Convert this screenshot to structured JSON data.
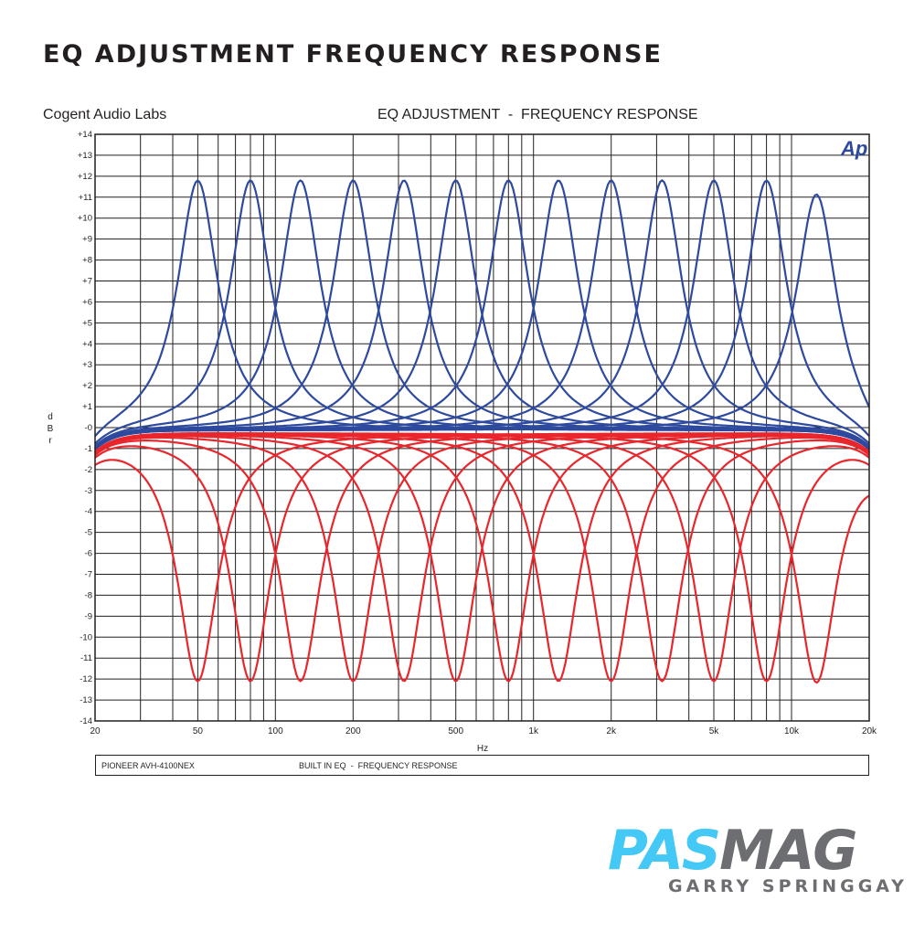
{
  "page": {
    "title": "EQ ADJUSTMENT FREQUENCY RESPONSE",
    "brand": "Cogent Audio Labs",
    "plot_title": "EQ ADJUSTMENT  -  FREQUENCY RESPONSE",
    "footer_left": "PIONEER AVH-4100NEX",
    "footer_right": "BUILT IN EQ  -  FREQUENCY RESPONSE",
    "logo_pas": "PAS",
    "logo_mag": "MAG",
    "credit": "GARRY SPRINGGAY",
    "ap_logo": "Ap"
  },
  "colors": {
    "boost": "#2e4a9e",
    "cut": "#e8262c",
    "grid": "#231f20",
    "ap_logo": "#2e4a9e",
    "logo_pas": "#44c8f5",
    "logo_mag": "#6d6e71"
  },
  "chart_data": {
    "type": "line",
    "title": "EQ ADJUSTMENT  -  FREQUENCY RESPONSE",
    "xlabel": "Hz",
    "ylabel": "dBr",
    "x_scale": "log",
    "xlim": [
      20,
      20000
    ],
    "ylim": [
      -14,
      14
    ],
    "grid": true,
    "x_ticks": [
      {
        "value": 20,
        "label": "20"
      },
      {
        "value": 50,
        "label": "50"
      },
      {
        "value": 100,
        "label": "100"
      },
      {
        "value": 200,
        "label": "200"
      },
      {
        "value": 500,
        "label": "500"
      },
      {
        "value": 1000,
        "label": "1k"
      },
      {
        "value": 2000,
        "label": "2k"
      },
      {
        "value": 5000,
        "label": "5k"
      },
      {
        "value": 10000,
        "label": "10k"
      },
      {
        "value": 20000,
        "label": "20k"
      }
    ],
    "y_ticks": [
      {
        "value": 14,
        "label": "+14"
      },
      {
        "value": 13,
        "label": "+13"
      },
      {
        "value": 12,
        "label": "+12"
      },
      {
        "value": 11,
        "label": "+11"
      },
      {
        "value": 10,
        "label": "+10"
      },
      {
        "value": 9,
        "label": "+9"
      },
      {
        "value": 8,
        "label": "+8"
      },
      {
        "value": 7,
        "label": "+7"
      },
      {
        "value": 6,
        "label": "+6"
      },
      {
        "value": 5,
        "label": "+5"
      },
      {
        "value": 4,
        "label": "+4"
      },
      {
        "value": 3,
        "label": "+3"
      },
      {
        "value": 2,
        "label": "+2"
      },
      {
        "value": 1,
        "label": "+1"
      },
      {
        "value": 0,
        "label": "-0"
      },
      {
        "value": -1,
        "label": "-1"
      },
      {
        "value": -2,
        "label": "-2"
      },
      {
        "value": -3,
        "label": "-3"
      },
      {
        "value": -4,
        "label": "-4"
      },
      {
        "value": -5,
        "label": "-5"
      },
      {
        "value": -6,
        "label": "-6"
      },
      {
        "value": -7,
        "label": "-7"
      },
      {
        "value": -8,
        "label": "-8"
      },
      {
        "value": -9,
        "label": "-9"
      },
      {
        "value": -10,
        "label": "-10"
      },
      {
        "value": -11,
        "label": "-11"
      },
      {
        "value": -12,
        "label": "-12"
      },
      {
        "value": -13,
        "label": "-13"
      },
      {
        "value": -14,
        "label": "-14"
      }
    ],
    "series": [
      {
        "group": "boost",
        "center_hz": 50,
        "peak_db": 11.8
      },
      {
        "group": "boost",
        "center_hz": 80,
        "peak_db": 11.8
      },
      {
        "group": "boost",
        "center_hz": 125,
        "peak_db": 11.8
      },
      {
        "group": "boost",
        "center_hz": 200,
        "peak_db": 11.8
      },
      {
        "group": "boost",
        "center_hz": 315,
        "peak_db": 11.8
      },
      {
        "group": "boost",
        "center_hz": 500,
        "peak_db": 11.8
      },
      {
        "group": "boost",
        "center_hz": 800,
        "peak_db": 11.8
      },
      {
        "group": "boost",
        "center_hz": 1250,
        "peak_db": 11.8
      },
      {
        "group": "boost",
        "center_hz": 2000,
        "peak_db": 11.8
      },
      {
        "group": "boost",
        "center_hz": 3150,
        "peak_db": 11.8
      },
      {
        "group": "boost",
        "center_hz": 5000,
        "peak_db": 11.8
      },
      {
        "group": "boost",
        "center_hz": 8000,
        "peak_db": 11.8
      },
      {
        "group": "boost",
        "center_hz": 12500,
        "peak_db": 11.2
      },
      {
        "group": "cut",
        "center_hz": 50,
        "peak_db": -12.1
      },
      {
        "group": "cut",
        "center_hz": 80,
        "peak_db": -12.1
      },
      {
        "group": "cut",
        "center_hz": 125,
        "peak_db": -12.1
      },
      {
        "group": "cut",
        "center_hz": 200,
        "peak_db": -12.1
      },
      {
        "group": "cut",
        "center_hz": 315,
        "peak_db": -12.1
      },
      {
        "group": "cut",
        "center_hz": 500,
        "peak_db": -12.1
      },
      {
        "group": "cut",
        "center_hz": 800,
        "peak_db": -12.1
      },
      {
        "group": "cut",
        "center_hz": 1250,
        "peak_db": -12.1
      },
      {
        "group": "cut",
        "center_hz": 2000,
        "peak_db": -12.1
      },
      {
        "group": "cut",
        "center_hz": 3150,
        "peak_db": -12.1
      },
      {
        "group": "cut",
        "center_hz": 5000,
        "peak_db": -12.1
      },
      {
        "group": "cut",
        "center_hz": 8000,
        "peak_db": -12.1
      },
      {
        "group": "cut",
        "center_hz": 12500,
        "peak_db": -12.1
      }
    ]
  }
}
